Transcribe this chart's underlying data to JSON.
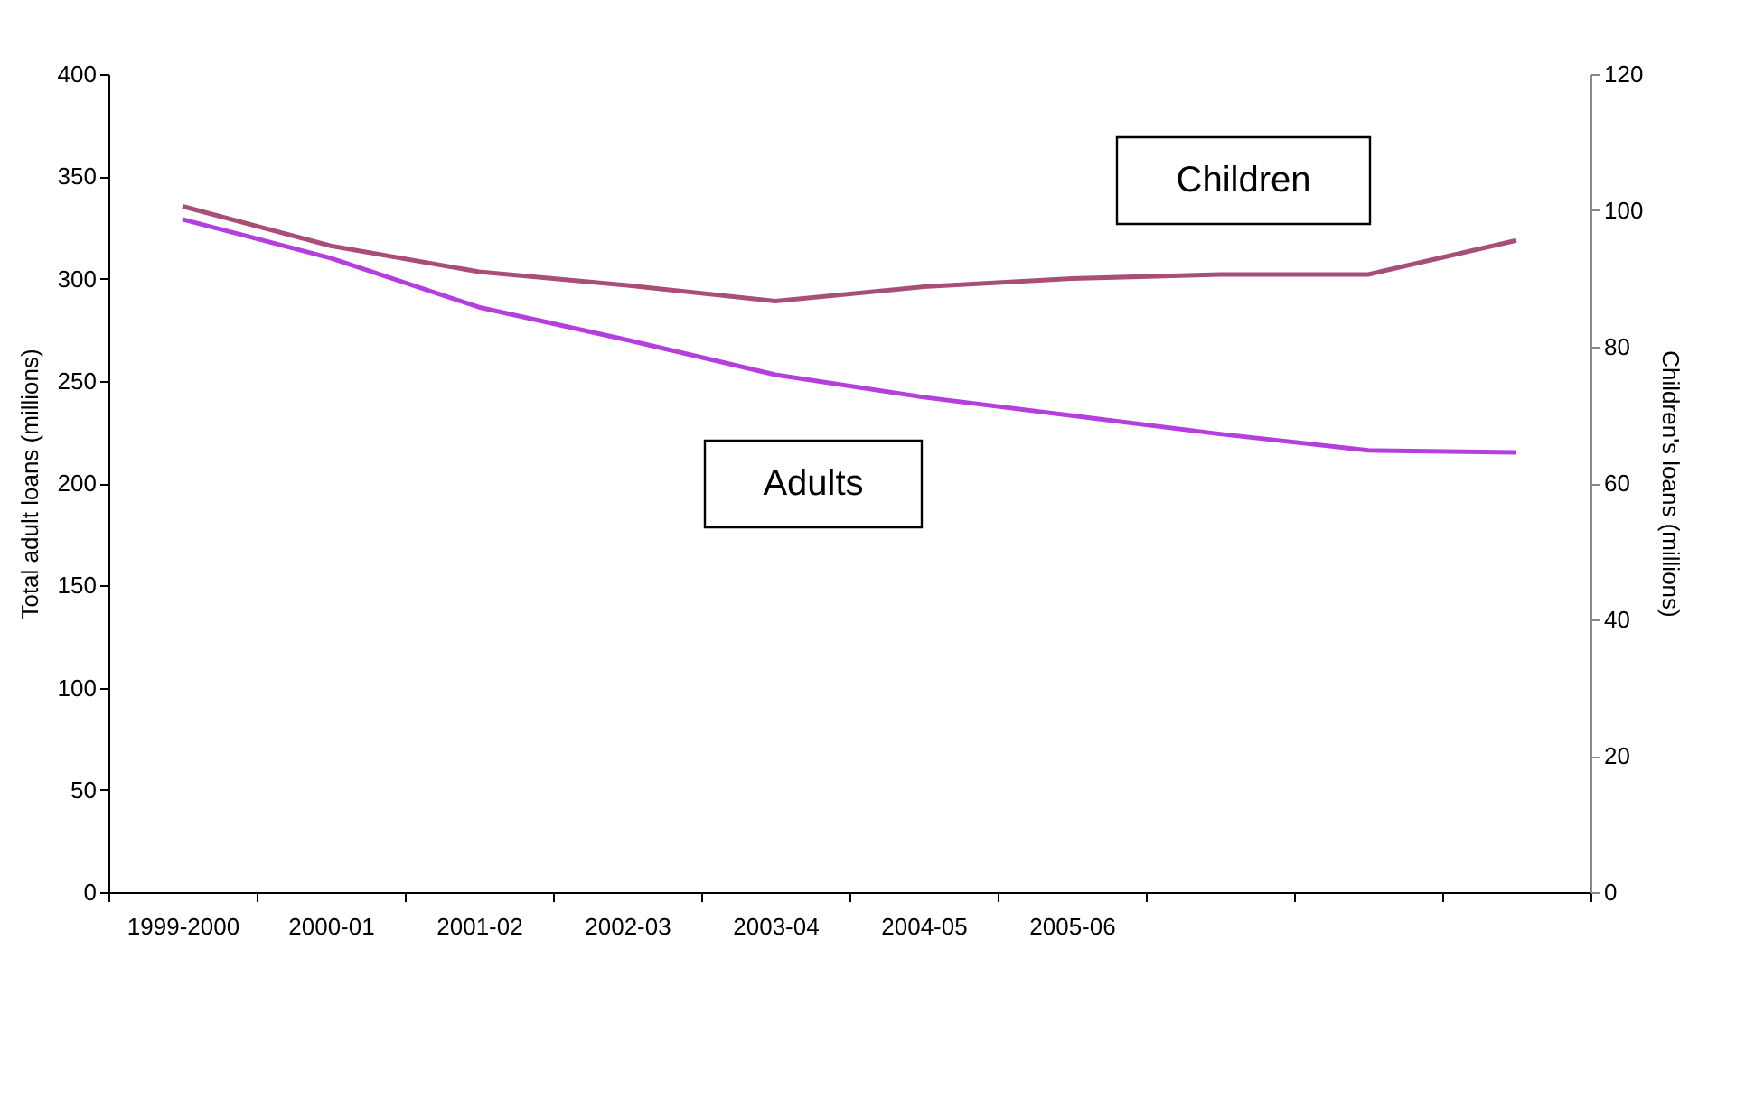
{
  "chart_data": {
    "type": "line",
    "ylabel": "Total adult loans (millions)",
    "y2label": "Children's loans (millions)",
    "categories": [
      "1999-2000",
      "2000-01",
      "2001-02",
      "2002-03",
      "2003-04",
      "2004-05",
      "2005-06",
      null,
      null,
      null
    ],
    "series": [
      {
        "name": "Adults",
        "color": "#b43fdc",
        "values": [
          329,
          310,
          286,
          270,
          253,
          242,
          233,
          224,
          216,
          215
        ]
      },
      {
        "name": "Children",
        "color": "#a84f78",
        "axis": "y2",
        "values": [
          100.6,
          94.8,
          91,
          89,
          86.7,
          88.8,
          90,
          90.6,
          90.6,
          95.6
        ]
      }
    ],
    "ylim": [
      0,
      400
    ],
    "yticks": [
      0,
      50,
      100,
      150,
      200,
      250,
      300,
      350,
      400
    ],
    "y2lim": [
      0,
      120
    ],
    "y2ticks": [
      0,
      20,
      40,
      60,
      80,
      100,
      120
    ],
    "grid": false,
    "marker": "none",
    "line_style": "solid"
  }
}
